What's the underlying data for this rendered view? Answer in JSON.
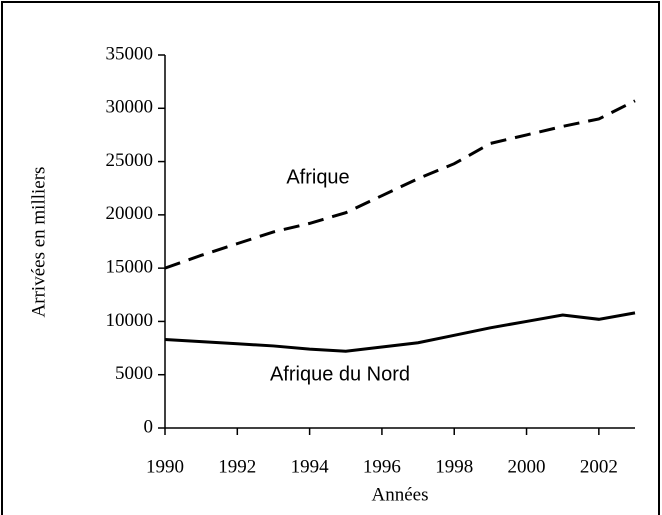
{
  "chart_data": {
    "type": "line",
    "x_label": "Années",
    "y_label": "Arrivées en milliers",
    "x": [
      1990,
      1991,
      1992,
      1993,
      1994,
      1995,
      1996,
      1997,
      1998,
      1999,
      2000,
      2001,
      2002,
      2003
    ],
    "series": [
      {
        "name": "Afrique",
        "color": "#000000",
        "style": "dashed",
        "values": [
          15000,
          16200,
          17300,
          18400,
          19200,
          20200,
          21800,
          23400,
          24800,
          26700,
          27500,
          28300,
          29000,
          30700
        ]
      },
      {
        "name": "Afrique du Nord",
        "color": "#000000",
        "style": "solid",
        "values": [
          8300,
          8100,
          7900,
          7700,
          7400,
          7200,
          7600,
          8000,
          8700,
          9400,
          10000,
          10600,
          10200,
          10800
        ]
      }
    ],
    "xlim": [
      1990,
      2003
    ],
    "xticks": [
      1990,
      1992,
      1994,
      1996,
      1998,
      2000,
      2002
    ],
    "ylim": [
      0,
      35000
    ],
    "yticks": [
      0,
      5000,
      10000,
      15000,
      20000,
      25000,
      30000,
      35000
    ],
    "grid": false
  }
}
